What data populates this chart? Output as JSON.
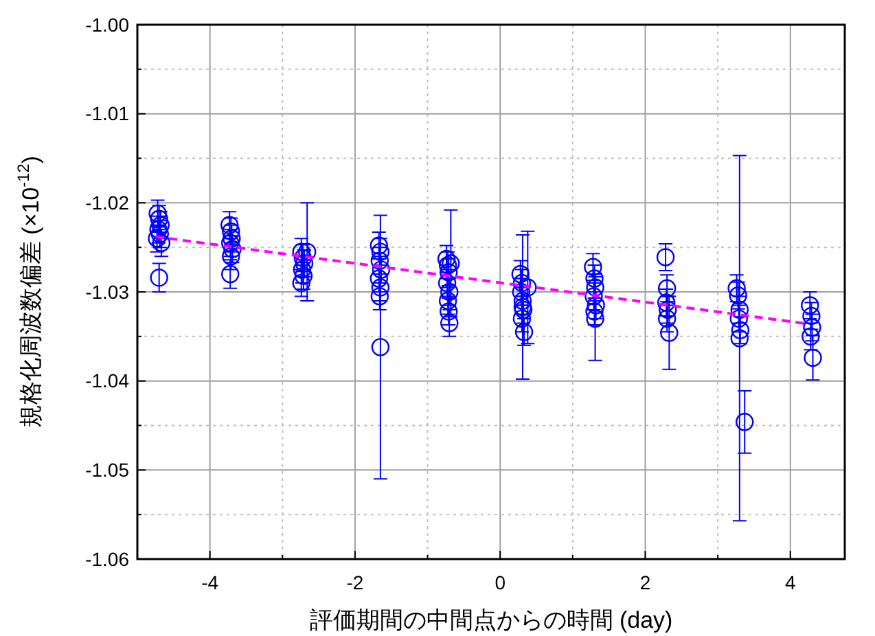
{
  "chart_data": {
    "type": "scatter",
    "xlabel": "評価期間の中間点からの時間 (day)",
    "ylabel": "規格化周波数偏差 (×10$^{-12}$)",
    "xlim": [
      -5,
      4.75
    ],
    "ylim": [
      -1.06,
      -1.0
    ],
    "xticks": [
      {
        "value": -4,
        "label": "-4"
      },
      {
        "value": -3,
        "label": null
      },
      {
        "value": -2,
        "label": "-2"
      },
      {
        "value": -1,
        "label": null
      },
      {
        "value": 0,
        "label": "0"
      },
      {
        "value": 1,
        "label": null
      },
      {
        "value": 2,
        "label": "2"
      },
      {
        "value": 3,
        "label": null
      },
      {
        "value": 4,
        "label": "4"
      }
    ],
    "yticks": [
      {
        "value": -1.06,
        "label": "-1.06"
      },
      {
        "value": -1.055,
        "label": null
      },
      {
        "value": -1.05,
        "label": "-1.05"
      },
      {
        "value": -1.045,
        "label": null
      },
      {
        "value": -1.04,
        "label": "-1.04"
      },
      {
        "value": -1.035,
        "label": null
      },
      {
        "value": -1.03,
        "label": "-1.03"
      },
      {
        "value": -1.025,
        "label": null
      },
      {
        "value": -1.02,
        "label": "-1.02"
      },
      {
        "value": -1.015,
        "label": null
      },
      {
        "value": -1.01,
        "label": "-1.01"
      },
      {
        "value": -1.005,
        "label": null
      },
      {
        "value": -1.0,
        "label": "-1.00"
      }
    ],
    "grid": true,
    "series": [
      {
        "color": "#0000ff",
        "marker": "circle",
        "x": [
          -4.72,
          -4.7,
          -4.68,
          -4.71,
          -4.69,
          -4.73,
          -4.67,
          -4.7,
          -3.73,
          -3.71,
          -3.7,
          -3.72,
          -3.69,
          -3.71,
          -3.72,
          -2.74,
          -2.72,
          -2.7,
          -2.73,
          -2.71,
          -2.74,
          -2.66,
          -1.67,
          -1.65,
          -1.66,
          -1.64,
          -1.67,
          -1.65,
          -1.66,
          -1.65,
          -0.74,
          -0.72,
          -0.71,
          -0.73,
          -0.7,
          -0.72,
          -0.71,
          -0.7,
          -0.68,
          0.28,
          0.3,
          0.29,
          0.31,
          0.32,
          0.3,
          0.33,
          0.31,
          0.38,
          1.28,
          1.3,
          1.31,
          1.29,
          1.32,
          1.3,
          1.31,
          2.28,
          2.3,
          2.29,
          2.31,
          2.3,
          2.33,
          3.26,
          3.28,
          3.3,
          3.29,
          3.31,
          3.3,
          3.37,
          4.27,
          4.29,
          4.3,
          4.28,
          4.31
        ],
        "values": [
          -1.0212,
          -1.0218,
          -1.0225,
          -1.023,
          -1.0235,
          -1.024,
          -1.0245,
          -1.0284,
          -1.0225,
          -1.0232,
          -1.024,
          -1.0245,
          -1.0252,
          -1.026,
          -1.028,
          -1.0255,
          -1.0262,
          -1.0268,
          -1.0275,
          -1.0282,
          -1.029,
          -1.0255,
          -1.0248,
          -1.0255,
          -1.0265,
          -1.0275,
          -1.0285,
          -1.0295,
          -1.0305,
          -1.0362,
          -1.0263,
          -1.027,
          -1.0278,
          -1.029,
          -1.03,
          -1.031,
          -1.0322,
          -1.0335,
          -1.0268,
          -1.028,
          -1.029,
          -1.03,
          -1.031,
          -1.032,
          -1.033,
          -1.0345,
          -1.0317,
          -1.0295,
          -1.0272,
          -1.0285,
          -1.0295,
          -1.0305,
          -1.0315,
          -1.0322,
          -1.033,
          -1.0261,
          -1.0296,
          -1.0312,
          -1.032,
          -1.033,
          -1.0346,
          -1.0296,
          -1.0304,
          -1.032,
          -1.033,
          -1.0343,
          -1.0352,
          -1.0446,
          -1.0315,
          -1.0327,
          -1.034,
          -1.035,
          -1.0374
        ],
        "errors": [
          0.0015,
          0.0015,
          0.0015,
          0.0015,
          0.0015,
          0.0015,
          0.0015,
          0.0016,
          0.0015,
          0.0015,
          0.0015,
          0.0015,
          0.0015,
          0.0015,
          0.0016,
          0.0015,
          0.0015,
          0.0015,
          0.0015,
          0.0015,
          0.0015,
          0.0055,
          0.0015,
          0.0015,
          0.0015,
          0.0015,
          0.0015,
          0.0015,
          0.0015,
          0.0148,
          0.0015,
          0.0015,
          0.0015,
          0.0015,
          0.0015,
          0.0015,
          0.0015,
          0.0015,
          0.006,
          0.0015,
          0.0015,
          0.0015,
          0.0015,
          0.0015,
          0.0015,
          0.0015,
          0.0081,
          0.0063,
          0.0015,
          0.0015,
          0.0015,
          0.0015,
          0.0015,
          0.0015,
          0.0047,
          0.0015,
          0.0015,
          0.0015,
          0.0015,
          0.0015,
          0.0041,
          0.0015,
          0.0015,
          0.0015,
          0.0015,
          0.0015,
          0.0205,
          0.0035,
          0.0015,
          0.0015,
          0.0015,
          0.0015,
          0.0025
        ]
      },
      {
        "type": "line",
        "color": "#ff00ff",
        "line_style": "dashed",
        "marker": "none",
        "x": [
          -4.75,
          4.25
        ],
        "values": [
          -1.0238,
          -1.0336
        ]
      }
    ]
  }
}
